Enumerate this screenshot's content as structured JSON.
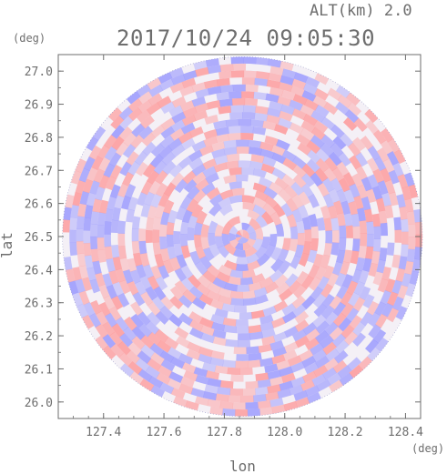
{
  "header": {
    "altitude": "ALT(km) 2.0",
    "timestamp": "2017/10/24 09:05:30"
  },
  "chart_data": {
    "type": "heatmap",
    "title": "2017/10/24 09:05:30",
    "subtitle": "ALT(km) 2.0",
    "xlabel": "lon",
    "ylabel": "lat",
    "xunit": "(deg)",
    "yunit": "(deg)",
    "xlim": [
      127.25,
      128.45
    ],
    "ylim": [
      25.95,
      27.05
    ],
    "xticks": [
      127.4,
      127.6,
      127.8,
      128.0,
      128.2,
      128.4
    ],
    "xtick_labels": [
      "127.4",
      "127.6",
      "127.8",
      "128.0",
      "128.2",
      "128.4"
    ],
    "yticks": [
      26.0,
      26.1,
      26.2,
      26.3,
      26.4,
      26.5,
      26.6,
      26.7,
      26.8,
      26.9,
      27.0
    ],
    "ytick_labels": [
      "26.0",
      "26.1",
      "26.2",
      "26.3",
      "26.4",
      "26.5",
      "26.6",
      "26.7",
      "26.8",
      "26.9",
      "27.0"
    ],
    "center": {
      "lon": 127.86,
      "lat": 26.5
    },
    "colors": {
      "positive": "#ff8c8c",
      "negative": "#8c8cff",
      "axis": "#6e6e6e"
    },
    "grid": false
  }
}
